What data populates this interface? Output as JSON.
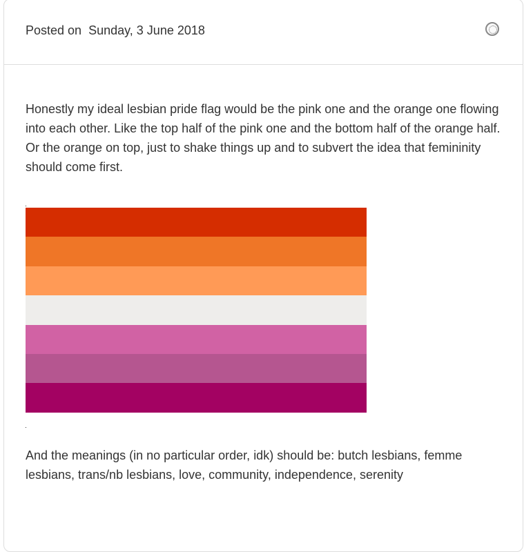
{
  "post": {
    "posted_label": "Posted on",
    "date": "Sunday, 3 June 2018",
    "avatar_icon": "avatar-icon",
    "paragraph1": "Honestly my ideal lesbian pride flag would be the pink one and the orange one flowing into each other. Like the top half of the pink one and the bottom half of the orange half. Or the orange on top, just to shake things up and to subvert the idea that femininity should come first.",
    "flag_colors": [
      "#D52D00",
      "#EF7627",
      "#FF9A56",
      "#EEEDEB",
      "#D162A4",
      "#B55690",
      "#A30262"
    ],
    "paragraph2": "And the meanings (in no particular order, idk) should be: butch lesbians, femme lesbians, trans/nb lesbians, love, community, independence, serenity"
  }
}
